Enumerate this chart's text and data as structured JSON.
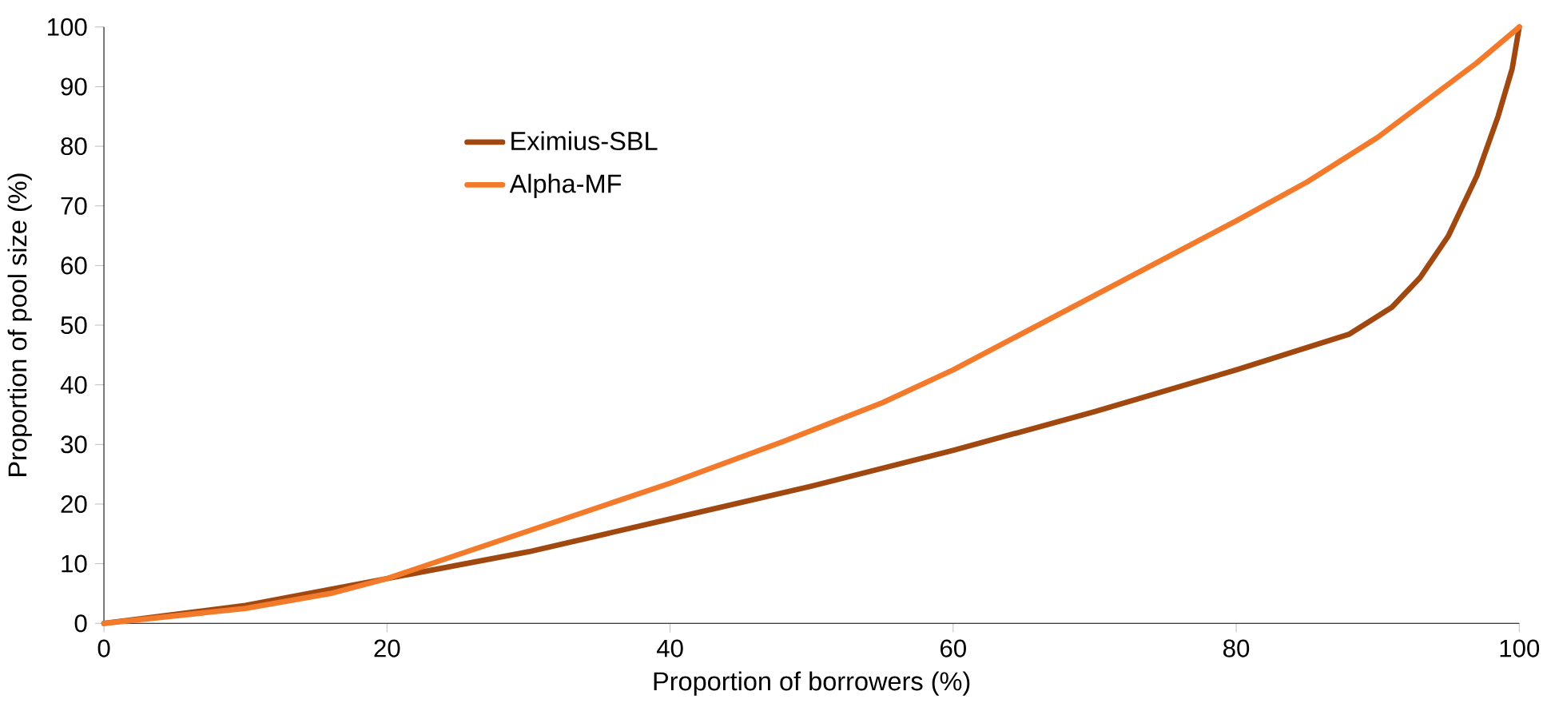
{
  "chart_data": {
    "type": "line",
    "xlabel": "Proportion of borrowers (%)",
    "ylabel": "Proportion of pool size (%)",
    "xlim": [
      0,
      100
    ],
    "xticks": [
      0,
      20,
      40,
      60,
      80,
      100
    ],
    "ylim": [
      0,
      100
    ],
    "yticks": [
      0,
      10,
      20,
      30,
      40,
      50,
      60,
      70,
      80,
      90,
      100
    ],
    "legend": "top left",
    "grid": false,
    "series": [
      {
        "name": "Eximius-SBL",
        "color": "#a0480f",
        "x": [
          0,
          10,
          20,
          30,
          40,
          50,
          60,
          70,
          80,
          88,
          91,
          93,
          95,
          97,
          98.5,
          99.5,
          100
        ],
        "values": [
          0,
          3,
          7.5,
          12,
          17.5,
          23,
          29,
          35.5,
          42.5,
          48.5,
          53,
          58,
          65,
          75,
          85,
          93,
          100
        ]
      },
      {
        "name": "Alpha-MF",
        "color": "#f47a2b",
        "x": [
          0,
          10,
          16,
          20,
          30,
          40,
          48,
          55,
          60,
          70,
          80,
          85,
          90,
          97,
          100
        ],
        "values": [
          0,
          2.5,
          5,
          7.5,
          15.5,
          23.5,
          30.5,
          37,
          42.5,
          55,
          67.5,
          74,
          81.5,
          94,
          100
        ]
      }
    ]
  }
}
